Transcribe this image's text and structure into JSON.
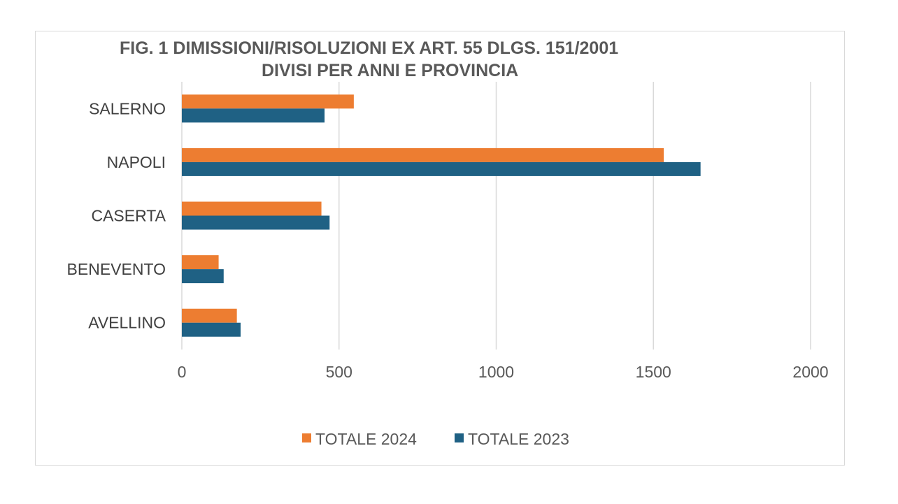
{
  "chart_data": {
    "type": "bar",
    "orientation": "horizontal",
    "title_line1": "FIG. 1 DIMISSIONI/RISOLUZIONI EX ART. 55 DLGS. 151/2001",
    "title_line2": "DIVISI PER ANNI E PROVINCIA",
    "categories": [
      "SALERNO",
      "NAPOLI",
      "CASERTA",
      "BENEVENTO",
      "AVELLINO"
    ],
    "series": [
      {
        "name": "TOTALE 2024",
        "color": "#ed7d31",
        "values": [
          547,
          1533,
          444,
          117,
          175
        ]
      },
      {
        "name": "TOTALE 2023",
        "color": "#1f6184",
        "values": [
          454,
          1650,
          470,
          133,
          187
        ]
      }
    ],
    "xlim": [
      0,
      2000
    ],
    "xticks": [
      "0",
      "500",
      "1000",
      "1500",
      "2000"
    ],
    "grid": true,
    "legend_position": "bottom"
  }
}
